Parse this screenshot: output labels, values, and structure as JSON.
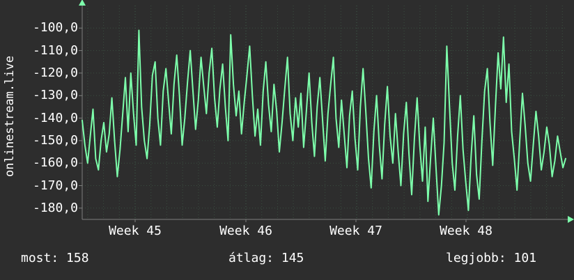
{
  "branding": {
    "site": "onlinestream.live"
  },
  "colors": {
    "background": "#2d2d2d",
    "text": "#ffffff",
    "line": "#7dffab",
    "grid": "rgba(125,255,170,0.2)",
    "axis": "#7e7e7e"
  },
  "stats": [
    {
      "label": "most:",
      "value": "158"
    },
    {
      "label": "átlag:",
      "value": "145"
    },
    {
      "label": "legjobb:",
      "value": "101"
    }
  ],
  "chart_data": {
    "type": "line",
    "title": "",
    "xlabel": "",
    "ylabel": "",
    "grid": true,
    "legend_position": "none",
    "line_color": "#7dffab",
    "x_tick_labels": [
      "Week 45",
      "Week 46",
      "Week 47",
      "Week 48"
    ],
    "y_tick_labels": [
      "-100,0",
      "-110,0",
      "-120,0",
      "-130,0",
      "-140,0",
      "-150,0",
      "-160,0",
      "-170,0",
      "-180,0"
    ],
    "y_ticks": [
      -100,
      -110,
      -120,
      -130,
      -140,
      -150,
      -160,
      -170,
      -180
    ],
    "ylim": [
      -185,
      -90
    ],
    "summary": {
      "most": 158,
      "atlag": 145,
      "legjobb": 101
    },
    "series": [
      {
        "name": "onlinestream.live",
        "values": [
          -141,
          -152,
          -160,
          -148,
          -136,
          -158,
          -163,
          -150,
          -142,
          -155,
          -147,
          -131,
          -150,
          -166,
          -154,
          -138,
          -122,
          -146,
          -120,
          -138,
          -152,
          -101,
          -135,
          -150,
          -158,
          -143,
          -121,
          -115,
          -140,
          -152,
          -128,
          -118,
          -133,
          -147,
          -125,
          -112,
          -130,
          -152,
          -140,
          -124,
          -110,
          -128,
          -145,
          -132,
          -113,
          -126,
          -138,
          -120,
          -109,
          -131,
          -144,
          -127,
          -116,
          -135,
          -150,
          -103,
          -125,
          -139,
          -128,
          -147,
          -133,
          -121,
          -108,
          -130,
          -148,
          -136,
          -152,
          -128,
          -115,
          -134,
          -146,
          -125,
          -137,
          -155,
          -142,
          -127,
          -113,
          -138,
          -150,
          -131,
          -144,
          -129,
          -153,
          -137,
          -120,
          -142,
          -157,
          -135,
          -122,
          -141,
          -159,
          -138,
          -125,
          -113,
          -140,
          -153,
          -132,
          -147,
          -162,
          -139,
          -128,
          -149,
          -163,
          -135,
          -118,
          -137,
          -158,
          -171,
          -146,
          -130,
          -152,
          -167,
          -143,
          -126,
          -148,
          -160,
          -138,
          -155,
          -170,
          -147,
          -133,
          -156,
          -174,
          -149,
          -131,
          -152,
          -168,
          -144,
          -177,
          -158,
          -140,
          -162,
          -183,
          -170,
          -151,
          -108,
          -135,
          -160,
          -172,
          -148,
          -130,
          -154,
          -168,
          -181,
          -157,
          -139,
          -165,
          -176,
          -150,
          -128,
          -118,
          -142,
          -161,
          -135,
          -111,
          -127,
          -104,
          -133,
          -116,
          -146,
          -158,
          -172,
          -150,
          -129,
          -143,
          -160,
          -168,
          -152,
          -137,
          -148,
          -163,
          -155,
          -144,
          -152,
          -166,
          -159,
          -148,
          -155,
          -162,
          -158
        ]
      }
    ]
  }
}
